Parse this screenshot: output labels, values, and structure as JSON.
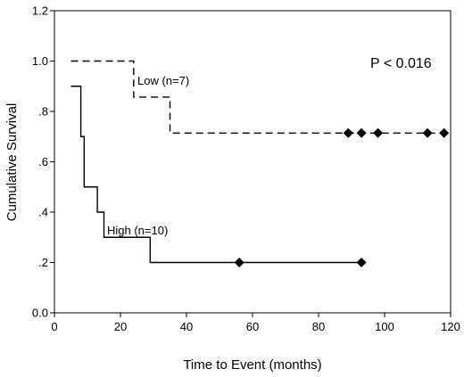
{
  "chart_data": {
    "type": "line",
    "title": "",
    "xlabel": "Time to Event (months)",
    "ylabel": "Cumulative Survival",
    "xlim": [
      0,
      120
    ],
    "ylim": [
      0.0,
      1.2
    ],
    "x_ticks": [
      0,
      20,
      40,
      60,
      80,
      100,
      120
    ],
    "x_tick_labels": [
      "0",
      "20",
      "40",
      "60",
      "80",
      "100",
      "120"
    ],
    "y_ticks": [
      0.0,
      0.2,
      0.4,
      0.6,
      0.8,
      1.0,
      1.2
    ],
    "y_tick_labels": [
      "0.0",
      ".2",
      ".4",
      ".6",
      ".8",
      "1.0",
      "1.2"
    ],
    "grid": false,
    "legend": "none",
    "annotations": {
      "p_value": "P < 0.016"
    },
    "series": [
      {
        "name": "Low (n=7)",
        "style": "dashed",
        "color": "#000000",
        "steps": [
          [
            5,
            1.0
          ],
          [
            24,
            0.857
          ],
          [
            35,
            0.714
          ],
          [
            118,
            0.714
          ]
        ],
        "censored": [
          [
            89,
            0.714
          ],
          [
            93,
            0.714
          ],
          [
            98,
            0.714
          ],
          [
            113,
            0.714
          ],
          [
            118,
            0.714
          ]
        ]
      },
      {
        "name": "High (n=10)",
        "style": "solid",
        "color": "#000000",
        "steps": [
          [
            5,
            0.9
          ],
          [
            8,
            0.7
          ],
          [
            9,
            0.5
          ],
          [
            13,
            0.4
          ],
          [
            15,
            0.3
          ],
          [
            29,
            0.2
          ],
          [
            93,
            0.2
          ]
        ],
        "censored": [
          [
            56,
            0.2
          ],
          [
            93,
            0.2
          ]
        ]
      }
    ]
  }
}
